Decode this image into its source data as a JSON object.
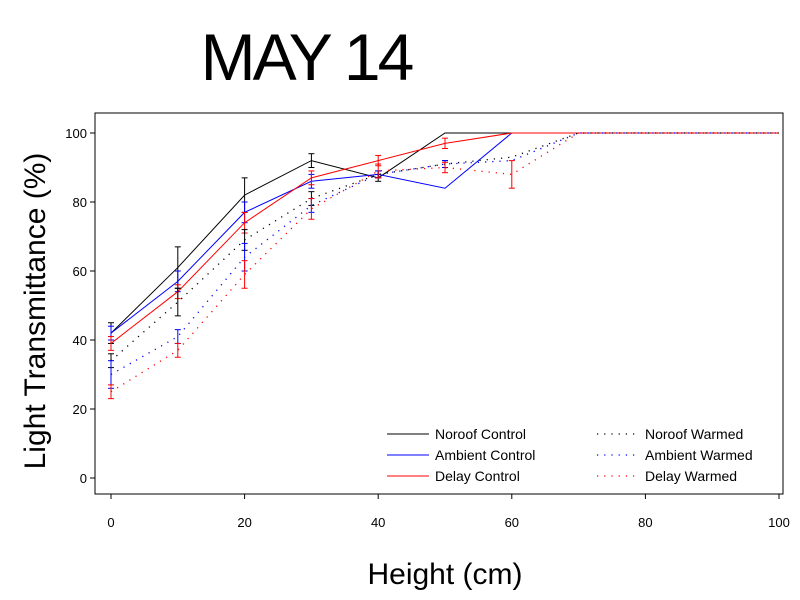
{
  "chart_data": {
    "type": "line",
    "title": "MAY  14",
    "xlabel": "Height  (cm)",
    "ylabel": "Light  Transmittance  (%)",
    "xlim": [
      0,
      100
    ],
    "ylim": [
      -5,
      105
    ],
    "x_ticks": [
      0,
      20,
      40,
      60,
      80,
      100
    ],
    "y_ticks": [
      0,
      20,
      40,
      60,
      80,
      100
    ],
    "grid": false,
    "legend_position": "bottom-right",
    "series": [
      {
        "name": "Noroof  Control",
        "color": "#000000",
        "style": "solid",
        "x": [
          0,
          10,
          20,
          30,
          40,
          50,
          60,
          100
        ],
        "y": [
          42,
          61,
          82,
          92,
          87,
          100,
          100,
          100
        ],
        "err": [
          3,
          6,
          5,
          2,
          1,
          0,
          0,
          0
        ]
      },
      {
        "name": "Ambient  Control",
        "color": "#0000ff",
        "style": "solid",
        "x": [
          0,
          10,
          20,
          30,
          40,
          50,
          60,
          100
        ],
        "y": [
          42,
          57,
          77,
          86,
          88,
          84,
          100,
          100
        ],
        "err": [
          2,
          3,
          3,
          2,
          1,
          0,
          0,
          0
        ]
      },
      {
        "name": "Delay  Control",
        "color": "#ff0000",
        "style": "solid",
        "x": [
          0,
          10,
          20,
          30,
          40,
          50,
          60,
          100
        ],
        "y": [
          39,
          54,
          74,
          87,
          92,
          97,
          100,
          100
        ],
        "err": [
          2,
          2,
          3,
          2,
          1.5,
          1.5,
          0,
          0
        ]
      },
      {
        "name": "Noroof  Warmed",
        "color": "#000000",
        "style": "dotted",
        "x": [
          0,
          10,
          20,
          30,
          40,
          50,
          60,
          70,
          100
        ],
        "y": [
          34,
          51,
          69,
          81,
          88,
          91,
          93,
          100,
          100
        ],
        "err": [
          2,
          4,
          3,
          2,
          1,
          1,
          0,
          0,
          0
        ]
      },
      {
        "name": "Ambient  Warmed",
        "color": "#0000ff",
        "style": "dotted",
        "x": [
          0,
          10,
          20,
          30,
          40,
          50,
          60,
          70,
          100
        ],
        "y": [
          30,
          41,
          64,
          79,
          88,
          91,
          92,
          100,
          100
        ],
        "err": [
          4,
          2,
          4,
          2,
          1,
          1,
          0,
          0,
          0
        ]
      },
      {
        "name": "Delay  Warmed",
        "color": "#ff0000",
        "style": "dotted",
        "x": [
          0,
          10,
          20,
          30,
          40,
          50,
          60,
          70,
          100
        ],
        "y": [
          25,
          37,
          59,
          78,
          89,
          90,
          88,
          100,
          100
        ],
        "err": [
          2,
          2,
          4,
          3,
          2,
          1.5,
          4,
          0,
          0
        ]
      }
    ]
  }
}
